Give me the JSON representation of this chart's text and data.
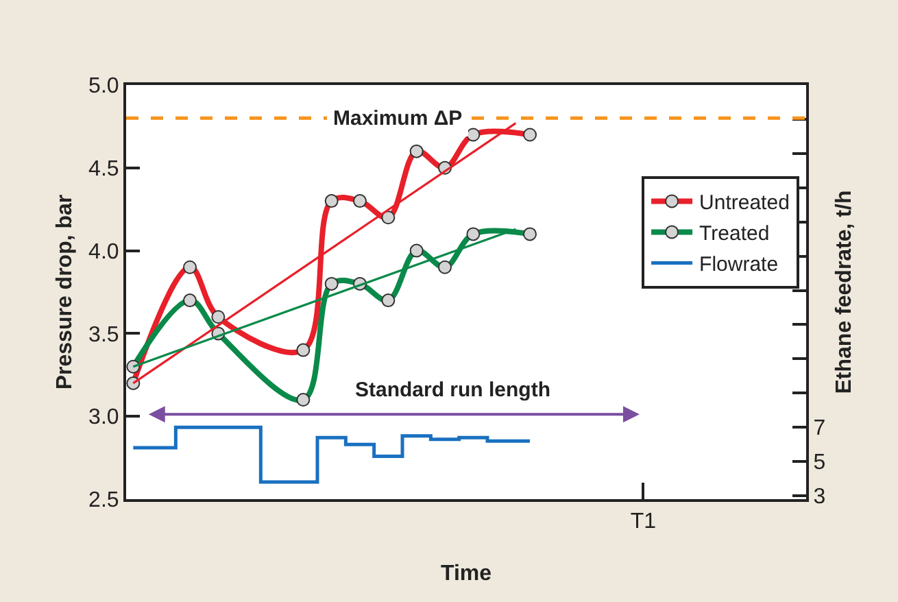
{
  "chart_data": {
    "type": "line",
    "xlabel": "Time",
    "ylabel": "Pressure drop, bar",
    "y2label": "Ethane feedrate, t/h",
    "categories": [
      null,
      null,
      null,
      null,
      null,
      null,
      null,
      null,
      null,
      null,
      null,
      null,
      null,
      null,
      null,
      null,
      null,
      null,
      null,
      null,
      null,
      null,
      null,
      null,
      null,
      null,
      null,
      null,
      null,
      null,
      null,
      null,
      null,
      null,
      null,
      null,
      "T1",
      null,
      null,
      null,
      null,
      null,
      null,
      null,
      null,
      null,
      null,
      null
    ],
    "ylim": [
      2.5,
      5.0
    ],
    "yticks": [
      {
        "value": 2.5,
        "label": "2.5"
      },
      {
        "value": 3,
        "label": "3.0"
      },
      {
        "value": 3.5,
        "label": "3.5"
      },
      {
        "value": 4,
        "label": "4.0"
      },
      {
        "value": 4.5,
        "label": "4.5"
      },
      {
        "value": 5,
        "label": "5.0"
      }
    ],
    "y2lim": [
      2.8,
      27
    ],
    "y2ticks": [
      3,
      5,
      7,
      {
        "value": 9,
        "label": null
      },
      {
        "value": 11,
        "label": null
      },
      {
        "value": 13,
        "label": null
      },
      {
        "value": 15,
        "label": null
      },
      {
        "value": 17,
        "label": null
      },
      {
        "value": 19,
        "label": null
      },
      {
        "value": 21,
        "label": null
      },
      {
        "value": 23,
        "label": null
      },
      {
        "value": 25,
        "label": null
      }
    ],
    "grid": false,
    "legend": "top right",
    "series": [
      {
        "name": "Untreated",
        "color": "#e8202a",
        "marker": "circle",
        "values": [
          3.2,
          null,
          null,
          null,
          3.9,
          null,
          3.6,
          null,
          null,
          null,
          null,
          null,
          3.4,
          null,
          4.3,
          null,
          4.3,
          null,
          4.2,
          null,
          4.6,
          null,
          4.5,
          null,
          4.7,
          null,
          null,
          null,
          4.7,
          null,
          null,
          null,
          null,
          null,
          null,
          null,
          null,
          null,
          null,
          null,
          null,
          null,
          null,
          null,
          null,
          null,
          null,
          null
        ]
      },
      {
        "name": "Treated",
        "color": "#0a8a4a",
        "marker": "circle",
        "values": [
          3.3,
          null,
          null,
          null,
          3.7,
          null,
          3.5,
          null,
          null,
          null,
          null,
          null,
          3.1,
          null,
          3.8,
          null,
          3.8,
          null,
          3.7,
          null,
          4.0,
          null,
          3.9,
          null,
          4.1,
          null,
          null,
          null,
          4.1,
          null,
          null,
          null,
          null,
          null,
          null,
          null,
          null,
          null,
          null,
          null,
          null,
          null,
          null,
          null,
          null,
          null,
          null,
          null
        ]
      },
      {
        "name": "Flowrate",
        "color": "#1a70c0",
        "type": "step",
        "marker": "none",
        "axis": "y2",
        "values": [
          5.8,
          null,
          null,
          7.0,
          null,
          null,
          null,
          null,
          null,
          3.8,
          null,
          null,
          null,
          6.4,
          null,
          6.0,
          null,
          5.3,
          null,
          6.5,
          null,
          6.3,
          null,
          6.4,
          null,
          6.2,
          null,
          null,
          6.2,
          null,
          null,
          null,
          null,
          null,
          null,
          null,
          null,
          null,
          null,
          null,
          null,
          null,
          null,
          null,
          null,
          null,
          null,
          null
        ]
      },
      {
        "color": "#e8202a",
        "marker": "none",
        "values": [
          3.2,
          null,
          null,
          null,
          null,
          null,
          null,
          null,
          null,
          null,
          null,
          null,
          null,
          null,
          null,
          null,
          null,
          null,
          null,
          null,
          null,
          null,
          null,
          null,
          null,
          null,
          null,
          4.77,
          null,
          null,
          null,
          null,
          null,
          null,
          null,
          null,
          null,
          null,
          null,
          null,
          null,
          null,
          null,
          null,
          null,
          null,
          null,
          null
        ]
      },
      {
        "color": "#0a8a4a",
        "marker": "none",
        "values": [
          3.3,
          null,
          null,
          null,
          null,
          null,
          null,
          null,
          null,
          null,
          null,
          null,
          null,
          null,
          null,
          null,
          null,
          null,
          null,
          null,
          null,
          null,
          null,
          null,
          null,
          null,
          null,
          4.13,
          null,
          null,
          null,
          null,
          null,
          null,
          null,
          null,
          null,
          null,
          null,
          null,
          null,
          null,
          null,
          null,
          null,
          null,
          null,
          null
        ]
      }
    ],
    "annotations": [
      "Standard run length"
    ],
    "ref_lines": [
      {
        "axis": "y",
        "value": 4.8,
        "label": "Maximum ΔP",
        "color": "#f7941d",
        "line_style": "dashed"
      }
    ]
  }
}
